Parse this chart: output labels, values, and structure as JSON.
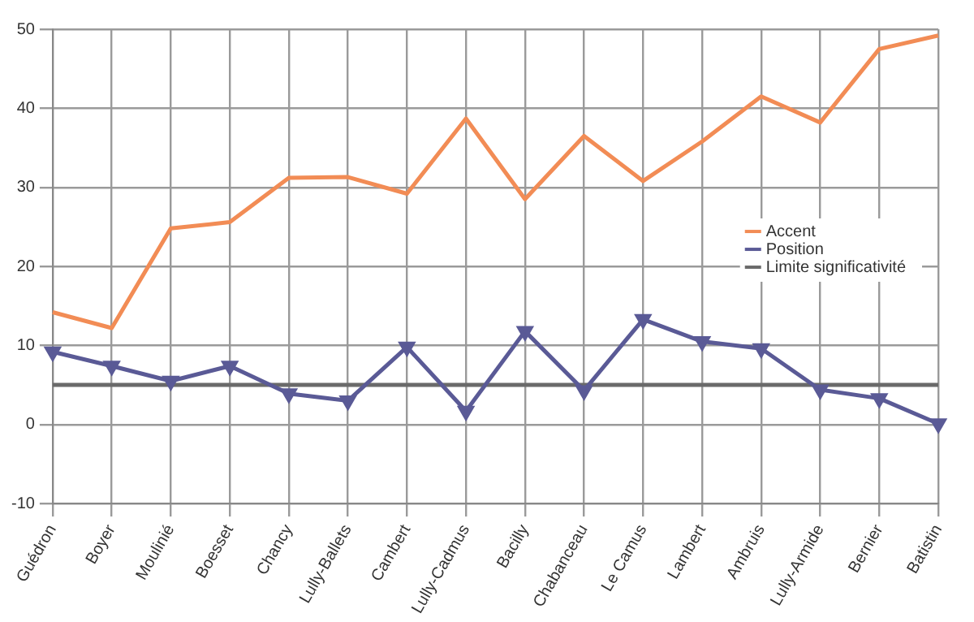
{
  "chart_data": {
    "type": "line",
    "categories": [
      "Guédron",
      "Boyer",
      "Moulinié",
      "Boesset",
      "Chancy",
      "Lully-Ballets",
      "Cambert",
      "Lully-Cadmus",
      "Bacilly",
      "Chabanceau",
      "Le Camus",
      "Lambert",
      "Ambruis",
      "Lully-Armide",
      "Bernier",
      "Batistin"
    ],
    "series": [
      {
        "name": "Accent",
        "color": "#f28c55",
        "marker": "none",
        "values": [
          14.2,
          12.2,
          24.8,
          25.6,
          31.2,
          31.3,
          29.2,
          38.7,
          28.5,
          36.5,
          30.8,
          35.8,
          41.5,
          38.2,
          47.5,
          49.2
        ]
      },
      {
        "name": "Position",
        "color": "#5a5a96",
        "marker": "triangle",
        "values": [
          9.2,
          7.4,
          5.5,
          7.4,
          3.9,
          3.0,
          9.8,
          1.7,
          11.8,
          4.3,
          13.3,
          10.5,
          9.6,
          4.4,
          3.3,
          0.1
        ]
      },
      {
        "name": "Limite significativité",
        "color": "#6a6a6a",
        "marker": "none",
        "values": [
          5,
          5,
          5,
          5,
          5,
          5,
          5,
          5,
          5,
          5,
          5,
          5,
          5,
          5,
          5,
          5
        ]
      }
    ],
    "ylim": [
      -10,
      50
    ],
    "yticks": [
      -10,
      0,
      10,
      20,
      30,
      40,
      50
    ],
    "grid": true,
    "legend": "right"
  }
}
